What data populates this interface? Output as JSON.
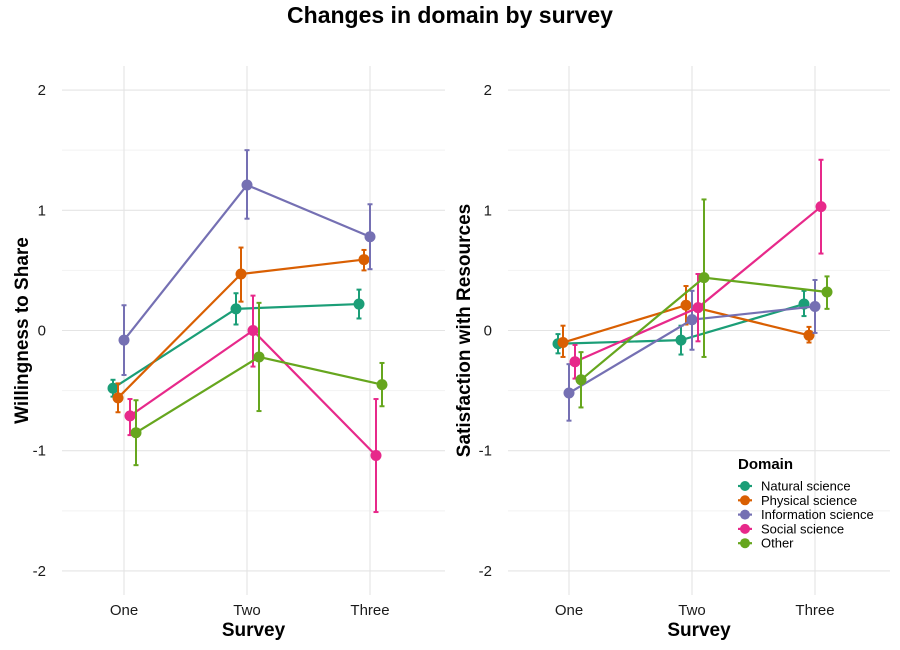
{
  "title": "Changes in domain by survey",
  "legend": {
    "title": "Domain",
    "position": "bottom-right of right panel"
  },
  "chart_data": [
    {
      "type": "line",
      "title": "Changes in domain by survey",
      "xlabel": "Survey",
      "ylabel": "Willingness to Share",
      "categories": [
        "One",
        "Two",
        "Three"
      ],
      "ylim": [
        -2.2,
        2.2
      ],
      "yticks": [
        "-2",
        "-1",
        "0",
        "1",
        "2"
      ],
      "grid": true,
      "error_bars": true,
      "series": [
        {
          "name": "Natural science",
          "color": "#1b9e77",
          "values": [
            -0.48,
            0.18,
            0.22
          ],
          "lower": [
            -0.55,
            0.05,
            0.1
          ],
          "upper": [
            -0.41,
            0.31,
            0.34
          ]
        },
        {
          "name": "Physical science",
          "color": "#d95f02",
          "values": [
            -0.56,
            0.47,
            0.59
          ],
          "lower": [
            -0.68,
            0.24,
            0.5
          ],
          "upper": [
            -0.44,
            0.69,
            0.67
          ]
        },
        {
          "name": "Information science",
          "color": "#7570b3",
          "values": [
            -0.08,
            1.21,
            0.78
          ],
          "lower": [
            -0.37,
            0.93,
            0.51
          ],
          "upper": [
            0.21,
            1.5,
            1.05
          ]
        },
        {
          "name": "Social science",
          "color": "#e7298a",
          "values": [
            -0.71,
            0.0,
            -1.04
          ],
          "lower": [
            -0.87,
            -0.3,
            -1.51
          ],
          "upper": [
            -0.57,
            0.29,
            -0.57
          ]
        },
        {
          "name": "Other",
          "color": "#66a61e",
          "values": [
            -0.85,
            -0.22,
            -0.45
          ],
          "lower": [
            -1.12,
            -0.67,
            -0.63
          ],
          "upper": [
            -0.58,
            0.23,
            -0.27
          ]
        }
      ]
    },
    {
      "type": "line",
      "xlabel": "Survey",
      "ylabel": "Satisfaction with Resources",
      "categories": [
        "One",
        "Two",
        "Three"
      ],
      "ylim": [
        -2.2,
        2.2
      ],
      "yticks": [
        "-2",
        "-1",
        "0",
        "1",
        "2"
      ],
      "grid": true,
      "error_bars": true,
      "series": [
        {
          "name": "Natural science",
          "color": "#1b9e77",
          "values": [
            -0.11,
            -0.08,
            0.22
          ],
          "lower": [
            -0.19,
            -0.2,
            0.12
          ],
          "upper": [
            -0.03,
            0.04,
            0.33
          ]
        },
        {
          "name": "Physical science",
          "color": "#d95f02",
          "values": [
            -0.1,
            0.21,
            -0.04
          ],
          "lower": [
            -0.22,
            0.05,
            -0.1
          ],
          "upper": [
            0.04,
            0.37,
            0.03
          ]
        },
        {
          "name": "Information science",
          "color": "#7570b3",
          "values": [
            -0.52,
            0.09,
            0.2
          ],
          "lower": [
            -0.75,
            -0.16,
            -0.02
          ],
          "upper": [
            -0.28,
            0.33,
            0.42
          ]
        },
        {
          "name": "Social science",
          "color": "#e7298a",
          "values": [
            -0.26,
            0.19,
            1.03
          ],
          "lower": [
            -0.4,
            -0.09,
            0.64
          ],
          "upper": [
            -0.12,
            0.47,
            1.42
          ]
        },
        {
          "name": "Other",
          "color": "#66a61e",
          "values": [
            -0.41,
            0.44,
            0.32
          ],
          "lower": [
            -0.64,
            -0.22,
            0.18
          ],
          "upper": [
            -0.18,
            1.09,
            0.45
          ]
        }
      ]
    }
  ]
}
